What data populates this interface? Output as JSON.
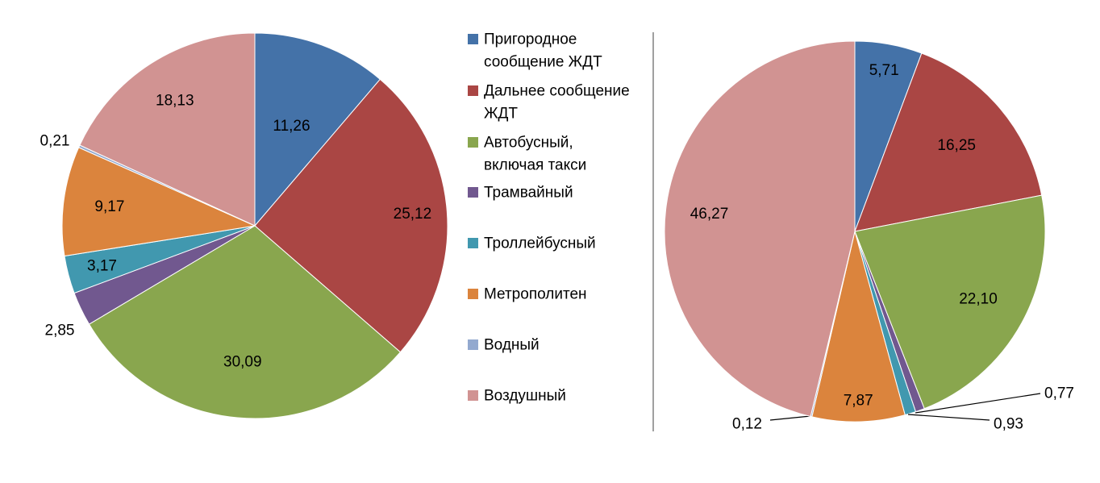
{
  "colors": {
    "prigorodnoe": "#4472A8",
    "dalnee": "#AA4644",
    "avtobusny": "#89A64E",
    "tramvayny": "#71588F",
    "trolleybusny": "#4198AF",
    "metropoliten": "#DB843D",
    "vodny": "#93A9CF",
    "vozdushny": "#D19392",
    "divider": "#808080"
  },
  "legend": {
    "items": [
      {
        "lines": [
          "Пригородное",
          "сообщение ЖДТ"
        ],
        "color_key": "prigorodnoe"
      },
      {
        "lines": [
          "Дальнее сообщение",
          "ЖДТ"
        ],
        "color_key": "dalnee"
      },
      {
        "lines": [
          "Автобусный,",
          "включая такси"
        ],
        "color_key": "avtobusny"
      },
      {
        "lines": [
          "Трамвайный"
        ],
        "color_key": "tramvayny"
      },
      {
        "lines": [
          "Троллейбусный"
        ],
        "color_key": "trolleybusny"
      },
      {
        "lines": [
          "Метрополитен"
        ],
        "color_key": "metropoliten"
      },
      {
        "lines": [
          "Водный"
        ],
        "color_key": "vodny"
      },
      {
        "lines": [
          "Воздушный"
        ],
        "color_key": "vozdushny"
      }
    ],
    "placement": "between-charts"
  },
  "chart_data": [
    {
      "type": "pie",
      "title": "",
      "categories": [
        "Пригородное сообщение ЖДТ",
        "Дальнее сообщение ЖДТ",
        "Автобусный, включая такси",
        "Трамвайный",
        "Троллейбусный",
        "Метрополитен",
        "Водный",
        "Воздушный"
      ],
      "values": [
        11.26,
        25.12,
        30.09,
        2.85,
        3.17,
        9.17,
        0.21,
        18.13
      ],
      "labels": [
        "11,26",
        "25,12",
        "30,09",
        "2,85",
        "3,17",
        "9,17",
        "0,21",
        "18,13"
      ]
    },
    {
      "type": "pie",
      "title": "",
      "categories": [
        "Пригородное сообщение ЖДТ",
        "Дальнее сообщение ЖДТ",
        "Автобусный, включая такси",
        "Трамвайный",
        "Троллейбусный",
        "Метрополитен",
        "Водный",
        "Воздушный"
      ],
      "values": [
        5.71,
        16.25,
        22.1,
        0.77,
        0.93,
        7.87,
        0.12,
        46.27
      ],
      "labels": [
        "5,71",
        "16,25",
        "22,10",
        "0,77",
        "0,93",
        "7,87",
        "0,12",
        "46,27"
      ]
    }
  ]
}
